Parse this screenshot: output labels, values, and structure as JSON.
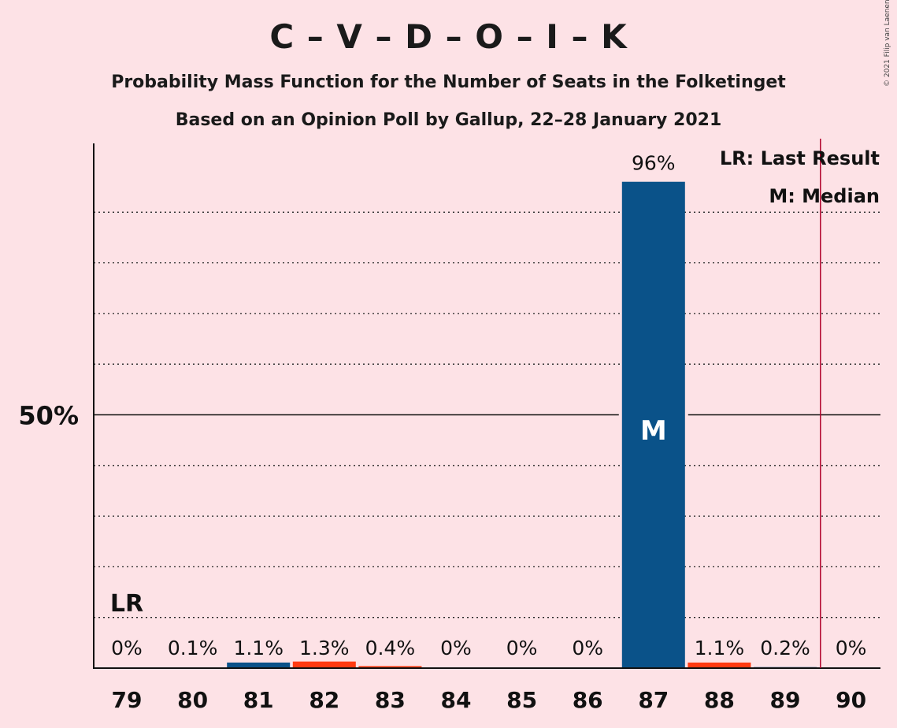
{
  "chart_data": {
    "type": "bar",
    "title": "C – V – D – O – I – K",
    "subtitle": "Probability Mass Function for the Number of Seats in the Folketinget",
    "subtitle2": "Based on an Opinion Poll by Gallup, 22–28 January 2021",
    "copyright": "© 2021 Filip van Laenen",
    "categories": [
      "79",
      "80",
      "81",
      "82",
      "83",
      "84",
      "85",
      "86",
      "87",
      "88",
      "89",
      "90"
    ],
    "values": [
      0,
      0.1,
      1.1,
      1.3,
      0.4,
      0,
      0,
      0,
      96,
      1.1,
      0.2,
      0
    ],
    "value_labels": [
      "0%",
      "0.1%",
      "1.1%",
      "1.3%",
      "0.4%",
      "0%",
      "0%",
      "0%",
      "96%",
      "1.1%",
      "0.2%",
      "0%"
    ],
    "bar_colors": [
      "#0a5289",
      "#0a5289",
      "#0a5289",
      "#ff3b12",
      "#ff3b12",
      "#0a5289",
      "#0a5289",
      "#0a5289",
      "#0a5289",
      "#ff3b12",
      "#0a5289",
      "#0a5289"
    ],
    "ylim": [
      0,
      104
    ],
    "y_tick_label": "50%",
    "y_tick_value": 50,
    "gridlines": [
      10,
      20,
      30,
      40,
      60,
      70,
      80,
      90
    ],
    "median_seat": "87",
    "median_marker": "M",
    "last_result_seat": "79",
    "last_result_marker": "LR",
    "majority_line_after": "89",
    "legend": [
      "LR: Last Result",
      "M: Median"
    ],
    "colors": {
      "blue": "#0a5289",
      "red": "#ff3b12",
      "majority_line": "#b0002a",
      "background": "#fde2e6"
    }
  }
}
